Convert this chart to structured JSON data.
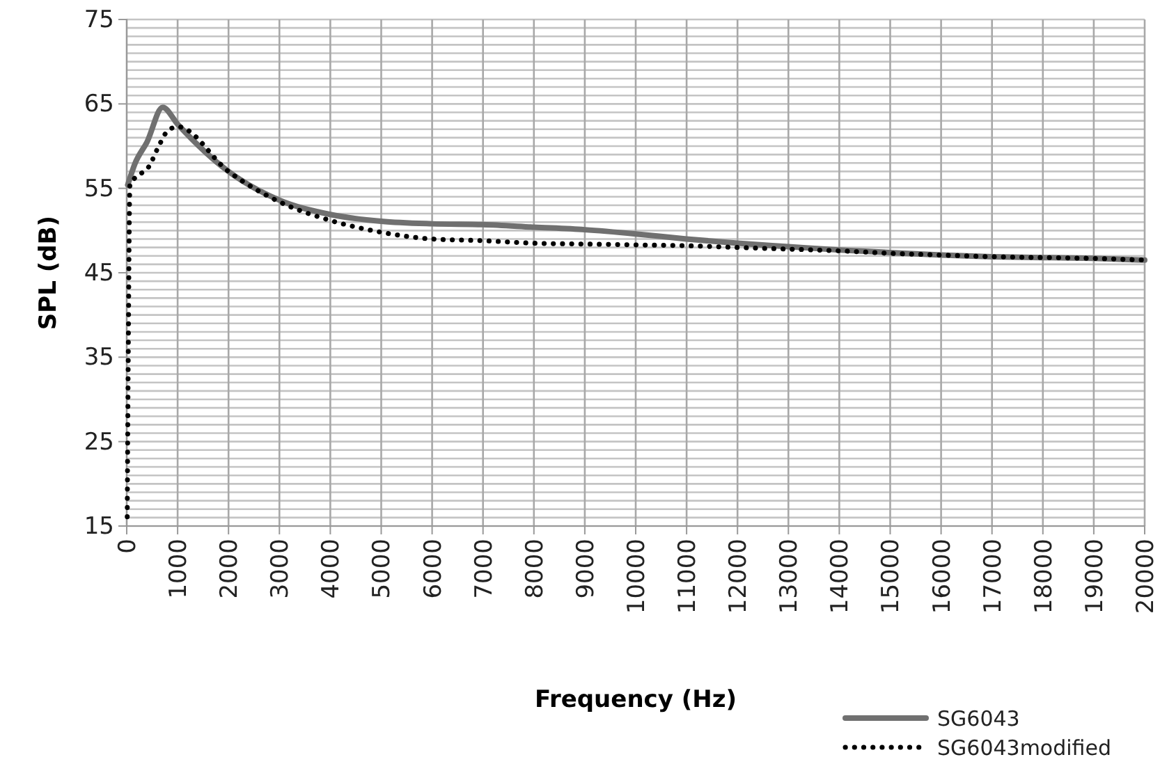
{
  "chart_data": {
    "type": "line",
    "xlabel": "Frequency (Hz)",
    "ylabel": "SPL (dB)",
    "xlim": [
      0,
      20000
    ],
    "ylim": [
      15,
      75
    ],
    "xticks": [
      0,
      1000,
      2000,
      3000,
      4000,
      5000,
      6000,
      7000,
      8000,
      9000,
      10000,
      11000,
      12000,
      13000,
      14000,
      15000,
      16000,
      17000,
      18000,
      19000,
      20000
    ],
    "yticks": [
      15,
      {
        "value": 16,
        "label": null
      },
      {
        "value": 17,
        "label": null
      },
      {
        "value": 18,
        "label": null
      },
      {
        "value": 19,
        "label": null
      },
      {
        "value": 20,
        "label": null
      },
      {
        "value": 21,
        "label": null
      },
      {
        "value": 22,
        "label": null
      },
      {
        "value": 23,
        "label": null
      },
      {
        "value": 24,
        "label": null
      },
      25,
      {
        "value": 26,
        "label": null
      },
      {
        "value": 27,
        "label": null
      },
      {
        "value": 28,
        "label": null
      },
      {
        "value": 29,
        "label": null
      },
      {
        "value": 30,
        "label": null
      },
      {
        "value": 31,
        "label": null
      },
      {
        "value": 32,
        "label": null
      },
      {
        "value": 33,
        "label": null
      },
      {
        "value": 34,
        "label": null
      },
      35,
      {
        "value": 36,
        "label": null
      },
      {
        "value": 37,
        "label": null
      },
      {
        "value": 38,
        "label": null
      },
      {
        "value": 39,
        "label": null
      },
      {
        "value": 40,
        "label": null
      },
      {
        "value": 41,
        "label": null
      },
      {
        "value": 42,
        "label": null
      },
      {
        "value": 43,
        "label": null
      },
      {
        "value": 44,
        "label": null
      },
      45,
      {
        "value": 46,
        "label": null
      },
      {
        "value": 47,
        "label": null
      },
      {
        "value": 48,
        "label": null
      },
      {
        "value": 49,
        "label": null
      },
      {
        "value": 50,
        "label": null
      },
      {
        "value": 51,
        "label": null
      },
      {
        "value": 52,
        "label": null
      },
      {
        "value": 53,
        "label": null
      },
      {
        "value": 54,
        "label": null
      },
      55,
      {
        "value": 56,
        "label": null
      },
      {
        "value": 57,
        "label": null
      },
      {
        "value": 58,
        "label": null
      },
      {
        "value": 59,
        "label": null
      },
      {
        "value": 60,
        "label": null
      },
      {
        "value": 61,
        "label": null
      },
      {
        "value": 62,
        "label": null
      },
      {
        "value": 63,
        "label": null
      },
      {
        "value": 64,
        "label": null
      },
      65,
      {
        "value": 66,
        "label": null
      },
      {
        "value": 67,
        "label": null
      },
      {
        "value": 68,
        "label": null
      },
      {
        "value": 69,
        "label": null
      },
      {
        "value": 70,
        "label": null
      },
      {
        "value": 71,
        "label": null
      },
      {
        "value": 72,
        "label": null
      },
      {
        "value": 73,
        "label": null
      },
      {
        "value": 74,
        "label": null
      },
      75
    ],
    "grid": true,
    "legend": "bottom right",
    "marker": "none",
    "series": [
      {
        "name": "SG6043",
        "color": "#707070",
        "line_style": "solid",
        "x": [
          20,
          160,
          400,
          707,
          1000,
          2000,
          3000,
          4000,
          5000,
          6000,
          7000,
          8000,
          9000,
          10000,
          11000,
          12000,
          13000,
          14000,
          15000,
          16000,
          17000,
          18000,
          19000,
          20000
        ],
        "values": [
          55.4,
          57.9,
          60.5,
          64.6,
          62.6,
          57,
          53.6,
          51.9,
          51.1,
          50.8,
          50.7,
          50.4,
          50.1,
          49.6,
          49,
          48.5,
          48.1,
          47.7,
          47.4,
          47.1,
          46.9,
          46.8,
          46.7,
          46.5
        ]
      },
      {
        "name": "SG6043modified",
        "color": "#000000",
        "line_style": "dotted",
        "x": [
          10,
          30,
          63,
          155,
          427,
          653,
          789,
          1000,
          2000,
          3000,
          4000,
          5000,
          6000,
          7000,
          8000,
          9000,
          10000,
          11000,
          12000,
          13000,
          14000,
          15000,
          16000,
          17000,
          18000,
          19000,
          20000
        ],
        "values": [
          16.1,
          35,
          55.4,
          56.2,
          57.5,
          60.3,
          61.7,
          62.3,
          57,
          53.4,
          51.2,
          49.8,
          49,
          48.8,
          48.5,
          48.4,
          48.3,
          48.2,
          48,
          47.8,
          47.6,
          47.3,
          47.1,
          46.9,
          46.8,
          46.7,
          46.5
        ]
      }
    ]
  }
}
